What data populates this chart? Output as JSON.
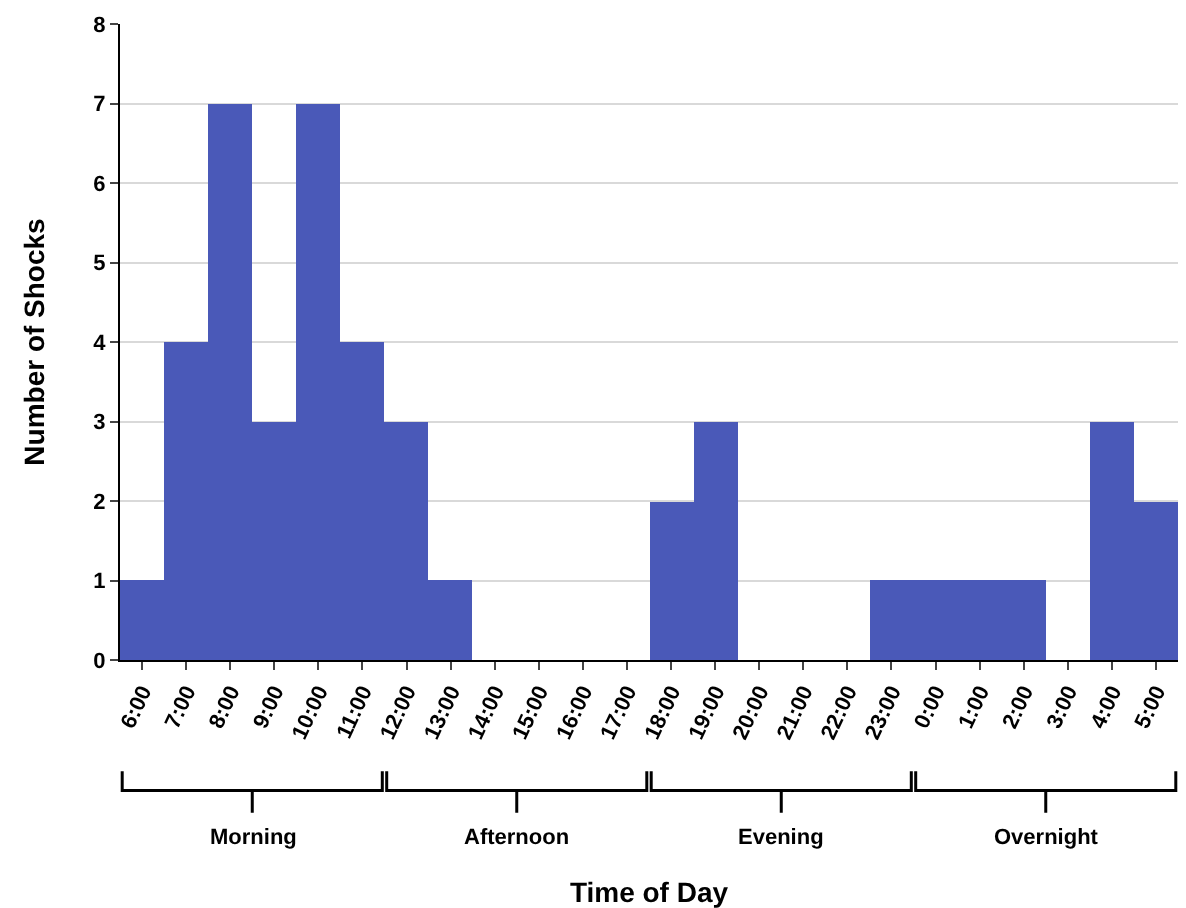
{
  "chart_data": {
    "type": "bar",
    "xlabel": "Time of Day",
    "ylabel": "Number of Shocks",
    "categories": [
      "6:00",
      "7:00",
      "8:00",
      "9:00",
      "10:00",
      "11:00",
      "12:00",
      "13:00",
      "14:00",
      "15:00",
      "16:00",
      "17:00",
      "18:00",
      "19:00",
      "20:00",
      "21:00",
      "22:00",
      "23:00",
      "0:00",
      "1:00",
      "2:00",
      "3:00",
      "4:00",
      "5:00"
    ],
    "values": [
      1,
      4,
      7,
      3,
      7,
      4,
      3,
      1,
      0,
      0,
      0,
      0,
      2,
      3,
      0,
      0,
      0,
      1,
      1,
      1,
      1,
      0,
      3,
      2
    ],
    "color": "#4a59b8",
    "ylim": [
      0,
      8
    ],
    "yticks": [
      0,
      1,
      2,
      3,
      4,
      5,
      6,
      7,
      8
    ],
    "grid": "y",
    "annotations": [
      "Morning",
      "Afternoon",
      "Evening",
      "Overnight"
    ]
  }
}
